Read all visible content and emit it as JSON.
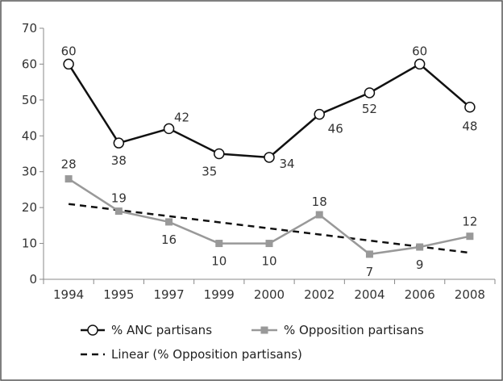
{
  "chart_data": {
    "type": "line",
    "categories": [
      "1994",
      "1995",
      "1997",
      "1999",
      "2000",
      "2002",
      "2004",
      "2006",
      "2008"
    ],
    "series": [
      {
        "name": "% ANC partisans",
        "values": [
          60,
          38,
          42,
          35,
          34,
          46,
          52,
          60,
          48
        ],
        "color": "#111111",
        "marker": "circle"
      },
      {
        "name": "% Opposition partisans",
        "values": [
          28,
          19,
          16,
          10,
          10,
          18,
          7,
          9,
          12
        ],
        "color": "#999999",
        "marker": "square"
      },
      {
        "name": "Linear (% Opposition partisans)",
        "values": [
          21,
          19.3,
          17.6,
          15.9,
          14.2,
          12.5,
          10.8,
          9.1,
          7.4
        ],
        "color": "#111111",
        "dashed": true
      }
    ],
    "data_labels": {
      "anc": [
        "60",
        "38",
        "42",
        "35",
        "34",
        "46",
        "52",
        "60",
        "48"
      ],
      "opposition": [
        "28",
        "19",
        "16",
        "10",
        "10",
        "18",
        "7",
        "9",
        "12"
      ]
    },
    "yticks": [
      "0",
      "10",
      "20",
      "30",
      "40",
      "50",
      "60",
      "70"
    ],
    "ylim": [
      0,
      70
    ],
    "grid": false,
    "legend_position": "bottom",
    "title": "",
    "xlabel": "",
    "ylabel": ""
  }
}
